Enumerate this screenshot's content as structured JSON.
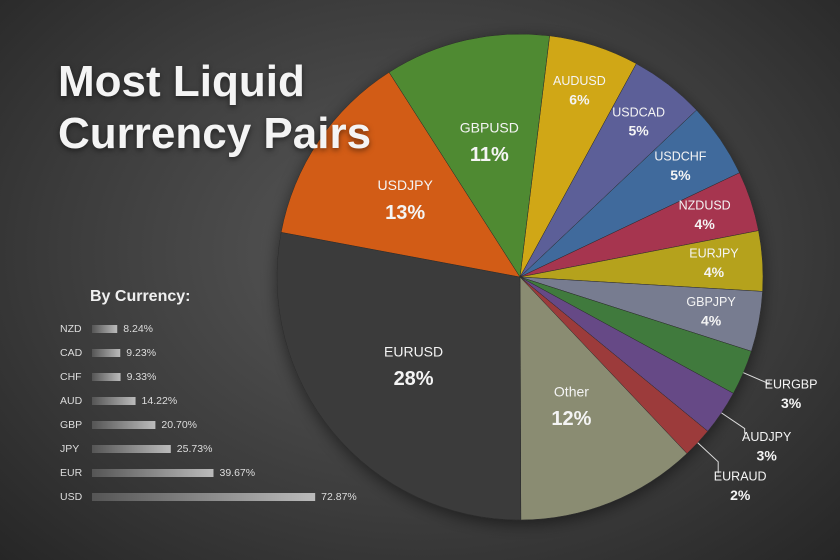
{
  "chart_data": [
    {
      "type": "pie",
      "title": "Most Liquid Currency Pairs",
      "categories": [
        "AUDUSD",
        "USDCAD",
        "USDCHF",
        "NZDUSD",
        "EURJPY",
        "GBPJPY",
        "EURGBP",
        "AUDJPY",
        "EURAUD",
        "Other",
        "EURUSD",
        "USDJPY",
        "GBPUSD"
      ],
      "values": [
        6,
        5,
        5,
        4,
        4,
        4,
        3,
        3,
        2,
        12,
        28,
        13,
        11
      ],
      "value_labels": [
        "6%",
        "5%",
        "5%",
        "4%",
        "4%",
        "4%",
        "3%",
        "3%",
        "2%",
        "12%",
        "28%",
        "13%",
        "11%"
      ],
      "colors": [
        "#d0a716",
        "#5b5f98",
        "#3f6b9c",
        "#a6344f",
        "#b5a21e",
        "#777c90",
        "#3f7a3c",
        "#664a86",
        "#9c3a3a",
        "#8a8c72",
        "#3b3b3b",
        "#d25b12",
        "#4f8a31"
      ]
    },
    {
      "type": "hbar",
      "title": "By Currency:",
      "categories": [
        "NZD",
        "CAD",
        "CHF",
        "AUD",
        "GBP",
        "JPY",
        "EUR",
        "USD"
      ],
      "values": [
        8.24,
        9.23,
        9.33,
        14.22,
        20.7,
        25.73,
        39.67,
        72.87
      ],
      "value_labels": [
        "8.24%",
        "9.23%",
        "9.33%",
        "14.22%",
        "20.70%",
        "25.73%",
        "39.67%",
        "72.87%"
      ],
      "color": "#8a8a8a",
      "xlim": [
        0,
        80
      ]
    }
  ]
}
